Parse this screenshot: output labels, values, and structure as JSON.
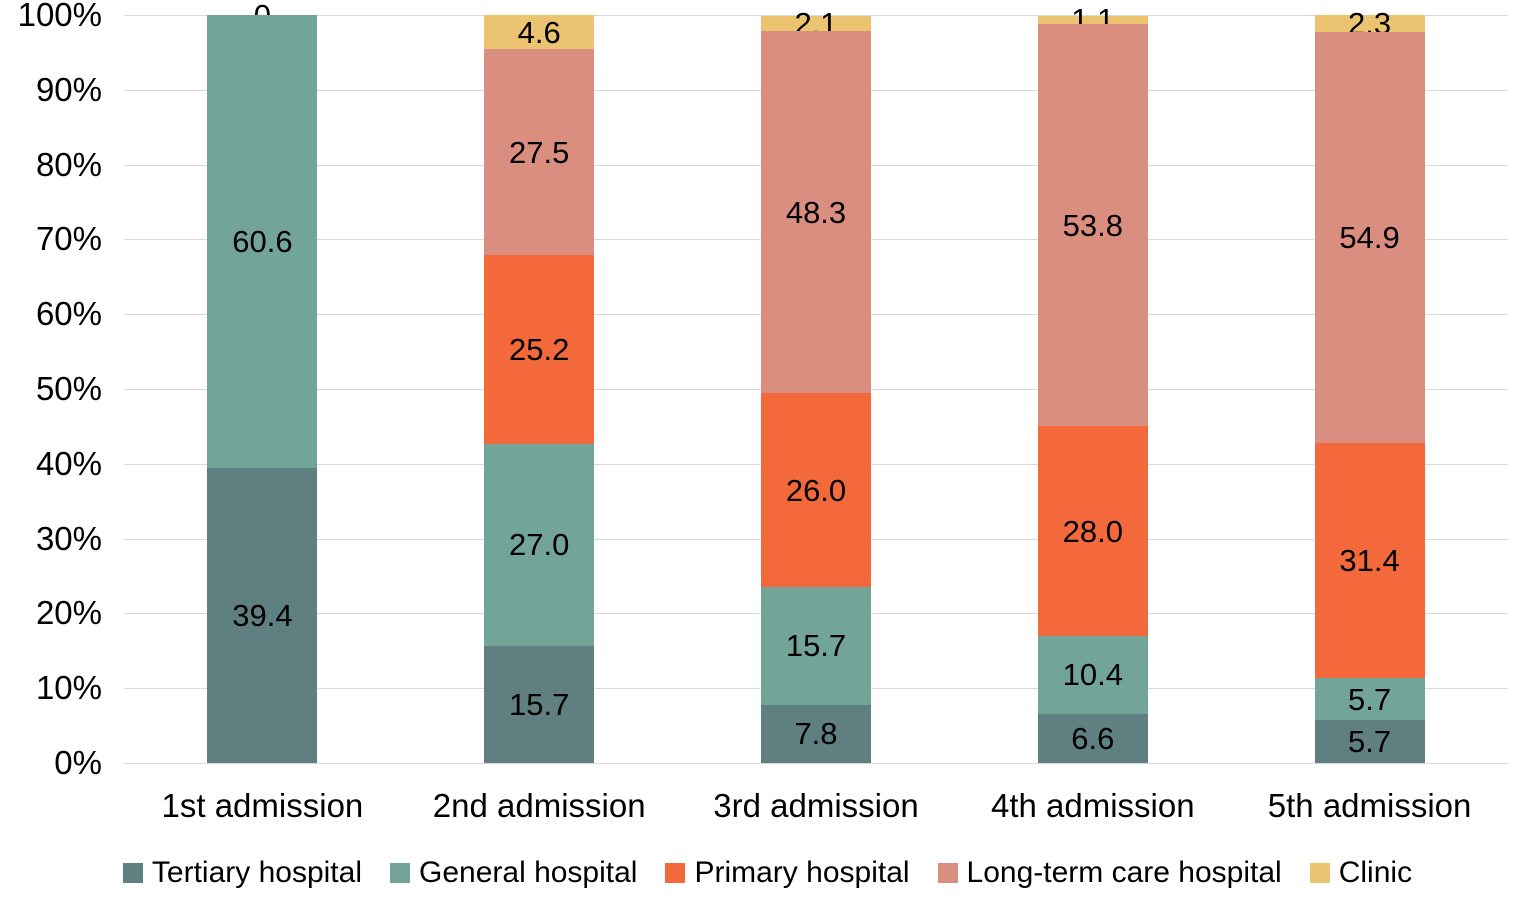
{
  "chart_data": {
    "type": "bar",
    "subtype": "stacked-100-percent-column",
    "title": "",
    "xlabel": "",
    "ylabel": "",
    "categories": [
      "1st admission",
      "2nd admission",
      "3rd admission",
      "4th admission",
      "5th admission"
    ],
    "series": [
      {
        "name": "Tertiary hospital",
        "color": "#5F7F80",
        "values": [
          39.4,
          15.7,
          7.8,
          6.6,
          5.7
        ]
      },
      {
        "name": "General hospital",
        "color": "#72A598",
        "values": [
          60.6,
          27.0,
          15.7,
          10.4,
          5.7
        ]
      },
      {
        "name": "Primary hospital",
        "color": "#F4693C",
        "values": [
          0,
          25.2,
          26.0,
          28.0,
          31.4
        ]
      },
      {
        "name": "Long-term care hospital",
        "color": "#D98E80",
        "values": [
          0,
          27.5,
          48.3,
          53.8,
          54.9
        ]
      },
      {
        "name": "Clinic",
        "color": "#ECC371",
        "values": [
          0,
          4.6,
          2.1,
          1.1,
          2.3
        ]
      }
    ],
    "data_labels": [
      [
        "39.4",
        "60.6",
        "0",
        "",
        ""
      ],
      [
        "15.7",
        "27.0",
        "25.2",
        "27.5",
        "4.6"
      ],
      [
        "7.8",
        "15.7",
        "26.0",
        "48.3",
        "2.1"
      ],
      [
        "6.6",
        "10.4",
        "28.0",
        "53.8",
        "1.1"
      ],
      [
        "5.7",
        "5.7",
        "31.4",
        "54.9",
        "2.3"
      ]
    ],
    "ylim": [
      0,
      100
    ],
    "y_ticks": [
      "0%",
      "10%",
      "20%",
      "30%",
      "40%",
      "50%",
      "60%",
      "70%",
      "80%",
      "90%",
      "100%"
    ],
    "grid": true,
    "gridline_color": "#D9D9D9",
    "legend_position": "bottom",
    "text_color": "#000000",
    "background_color": "#FFFFFF"
  }
}
